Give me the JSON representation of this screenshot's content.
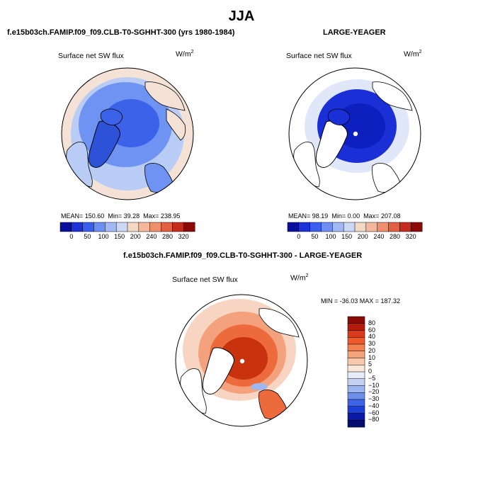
{
  "title": "JJA",
  "panels": [
    {
      "id": "model",
      "title": "f.e15b03ch.FAMIP.f09_f09.CLB-T0-SGHHT-300 (yrs 1980-1984)",
      "variable": "Surface net SW flux",
      "units_base": "W/m",
      "units_exp": "2",
      "stats": {
        "mean_label": "MEAN=",
        "mean": "150.60",
        "min_label": "Min=",
        "min": "39.28",
        "max_label": "Max=",
        "max": "238.95"
      }
    },
    {
      "id": "obs",
      "title": "LARGE-YEAGER",
      "variable": "Surface net SW flux",
      "units_base": "W/m",
      "units_exp": "2",
      "stats": {
        "mean_label": "MEAN=",
        "mean": "98.19",
        "min_label": "Min=",
        "min": "0.00",
        "max_label": "Max=",
        "max": "207.08"
      }
    },
    {
      "id": "diff",
      "title": "f.e15b03ch.FAMIP.f09_f09.CLB-T0-SGHHT-300 - LARGE-YEAGER",
      "variable": "Surface net SW flux",
      "units_base": "W/m",
      "units_exp": "2",
      "stats_text": "MIN = -36.03 MAX = 187.32"
    }
  ],
  "colorbar_abs": {
    "ticks": [
      "0",
      "50",
      "100",
      "150",
      "200",
      "240",
      "280",
      "320"
    ],
    "colors": [
      "#0a0e9c",
      "#1d33d8",
      "#3a5fee",
      "#6d8ef3",
      "#a1b9f5",
      "#cad8f6",
      "#f2d9c4",
      "#f6b89c",
      "#ef8f6e",
      "#e35f42",
      "#c62c1c",
      "#8c0a06"
    ]
  },
  "colorbar_diff": {
    "labels": [
      "80",
      "60",
      "40",
      "30",
      "20",
      "10",
      "5",
      "0",
      "−5",
      "−10",
      "−20",
      "−30",
      "−40",
      "−60",
      "−80"
    ],
    "colors": [
      "#8c0a06",
      "#b51b0d",
      "#d83a1d",
      "#ee5a2c",
      "#f4804f",
      "#f6a47c",
      "#f8c9ad",
      "#fbe6d9",
      "#e6edf8",
      "#c3d2f3",
      "#9cb5f0",
      "#6c8fec",
      "#3e63e6",
      "#1e3fd4",
      "#0a1aa6",
      "#050d6e"
    ]
  },
  "map_colors": {
    "ocean_model": "#6e93f2",
    "arctic_model": "#3d62ea",
    "landmass_model": "#2d52d8",
    "outer_model": "#f4e2d6",
    "mid_model": "#b8ccf6",
    "ocean_obs": "#1a2fd6",
    "arctic_obs": "#0d1fbf",
    "outer_obs": "#dfe7f9",
    "diff_core": "#c8320f",
    "diff_mid": "#ec6a3c",
    "diff_outer": "#f3a27d",
    "diff_pale": "#f8d5c2",
    "diff_blue": "#9fb6ef",
    "land_white": "#ffffff"
  }
}
